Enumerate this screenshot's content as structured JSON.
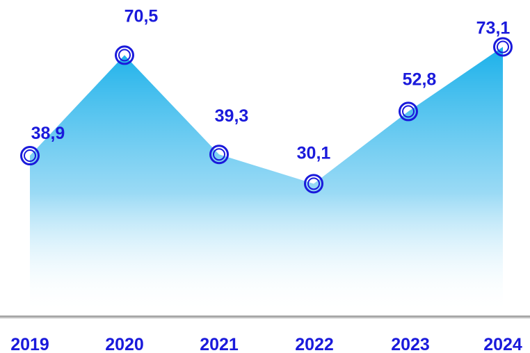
{
  "chart_data": {
    "type": "area",
    "categories": [
      "2019",
      "2020",
      "2021",
      "2022",
      "2023",
      "2024"
    ],
    "values": [
      38.9,
      70.5,
      39.3,
      30.1,
      52.8,
      73.1
    ],
    "value_labels": [
      "38,9",
      "70,5",
      "39,3",
      "30,1",
      "52,8",
      "73,1"
    ],
    "title": "",
    "xlabel": "",
    "ylabel": "",
    "grid": false,
    "legend": "none",
    "colors": {
      "area_top": "#1bb1ea",
      "area_bottom": "#ffffff",
      "marker": "#1a1adb",
      "label": "#1a1adb",
      "axis_line": "#a8a8a8"
    }
  }
}
